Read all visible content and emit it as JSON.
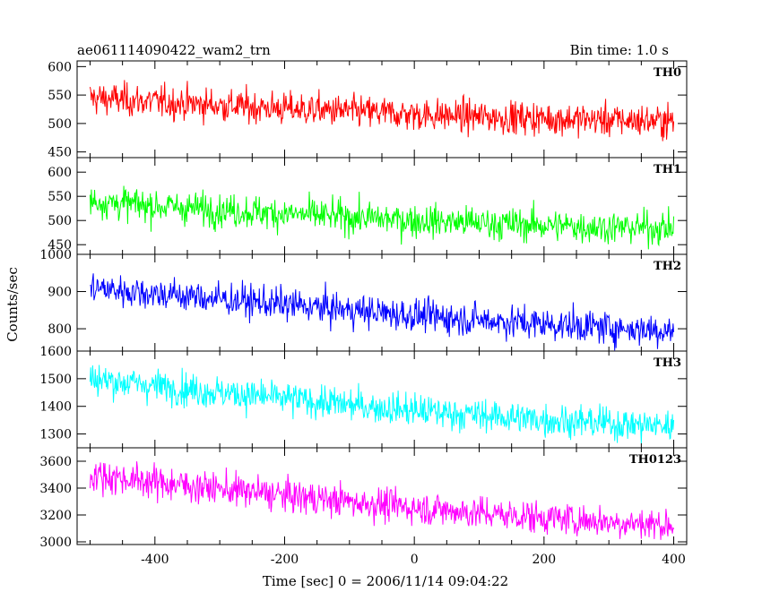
{
  "chart_data": {
    "type": "line",
    "title_left": "ae061114090422_wam2_trn",
    "title_right": "Bin time: 1.0 s",
    "xlabel": "Time [sec] 0 = 2006/11/14 09:04:22",
    "ylabel": "Counts/sec",
    "xlim": [
      -520,
      420
    ],
    "xticks": [
      -400,
      -200,
      0,
      200,
      400
    ],
    "grid": false,
    "panels": [
      {
        "name": "TH0",
        "color": "#ff0000",
        "ylim": [
          440,
          610
        ],
        "yticks": [
          450,
          500,
          550,
          600
        ],
        "x": [
          -500,
          -400,
          -300,
          -200,
          -100,
          0,
          100,
          200,
          300,
          400
        ],
        "y": [
          545,
          538,
          532,
          526,
          521,
          516,
          512,
          509,
          506,
          504
        ]
      },
      {
        "name": "TH1",
        "color": "#00ff00",
        "ylim": [
          430,
          630
        ],
        "yticks": [
          450,
          500,
          550,
          600
        ],
        "x": [
          -500,
          -400,
          -300,
          -200,
          -100,
          0,
          100,
          200,
          300,
          400
        ],
        "y": [
          540,
          530,
          522,
          514,
          507,
          500,
          495,
          490,
          486,
          484
        ]
      },
      {
        "name": "TH2",
        "color": "#0000ff",
        "ylim": [
          740,
          1000
        ],
        "yticks": [
          800,
          900,
          1000
        ],
        "x": [
          -500,
          -400,
          -300,
          -200,
          -100,
          0,
          100,
          200,
          300,
          400
        ],
        "y": [
          910,
          895,
          880,
          865,
          850,
          836,
          824,
          813,
          803,
          795
        ]
      },
      {
        "name": "TH3",
        "color": "#00ffff",
        "ylim": [
          1250,
          1600
        ],
        "yticks": [
          1300,
          1400,
          1500,
          1600
        ],
        "x": [
          -500,
          -400,
          -300,
          -200,
          -100,
          0,
          100,
          200,
          300,
          400
        ],
        "y": [
          1500,
          1475,
          1450,
          1428,
          1405,
          1385,
          1368,
          1352,
          1338,
          1328
        ]
      },
      {
        "name": "TH0123",
        "color": "#ff00ff",
        "ylim": [
          2980,
          3700
        ],
        "yticks": [
          3000,
          3200,
          3400,
          3600
        ],
        "x": [
          -500,
          -400,
          -300,
          -200,
          -100,
          0,
          100,
          200,
          300,
          400
        ],
        "y": [
          3500,
          3445,
          3395,
          3345,
          3300,
          3255,
          3215,
          3180,
          3150,
          3125
        ]
      }
    ]
  }
}
